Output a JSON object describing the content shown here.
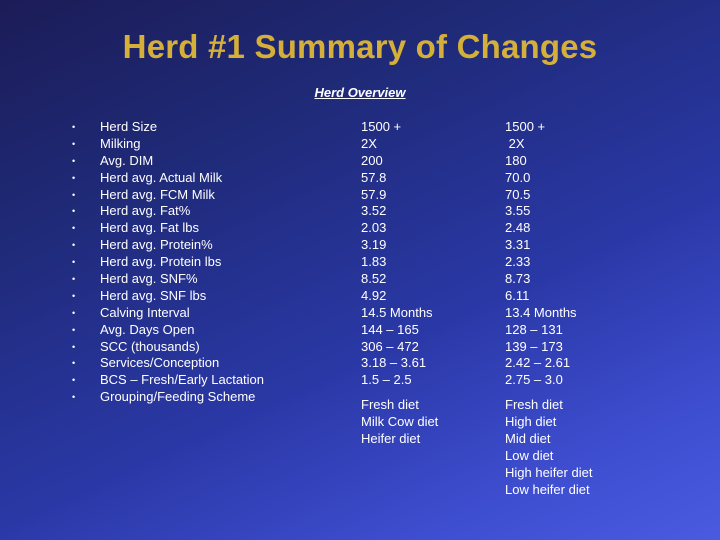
{
  "title": "Herd #1 Summary of Changes",
  "subheading": "Herd Overview",
  "bullet_char": "•",
  "rows": [
    {
      "label": "Herd Size",
      "before": "1500 +",
      "after": "1500 +"
    },
    {
      "label": "Milking",
      "before": "2X",
      "after": " 2X"
    },
    {
      "label": "Avg. DIM",
      "before": "200",
      "after": "180"
    },
    {
      "label": "Herd avg. Actual Milk",
      "before": "57.8",
      "after": "70.0"
    },
    {
      "label": "Herd avg. FCM Milk",
      "before": "57.9",
      "after": "70.5"
    },
    {
      "label": "Herd avg. Fat%",
      "before": "3.52",
      "after": "3.55"
    },
    {
      "label": "Herd avg. Fat lbs",
      "before": "2.03",
      "after": "2.48"
    },
    {
      "label": "Herd avg. Protein%",
      "before": "3.19",
      "after": "3.31"
    },
    {
      "label": "Herd avg. Protein lbs",
      "before": "1.83",
      "after": "2.33"
    },
    {
      "label": "Herd avg. SNF%",
      "before": "8.52",
      "after": "8.73"
    },
    {
      "label": "Herd avg. SNF lbs",
      "before": "4.92",
      "after": "6.11"
    },
    {
      "label": "Calving Interval",
      "before": "14.5 Months",
      "after": "13.4 Months"
    },
    {
      "label": "Avg. Days Open",
      "before": "144 – 165",
      "after": "128 – 131"
    },
    {
      "label": "SCC (thousands)",
      "before": "306 – 472",
      "after": "139 – 173"
    },
    {
      "label": "Services/Conception",
      "before": "3.18 – 3.61",
      "after": "2.42 – 2.61"
    },
    {
      "label": "BCS – Fresh/Early Lactation",
      "before": "1.5 – 2.5",
      "after": "2.75 – 3.0"
    },
    {
      "label": "Grouping/Feeding Scheme",
      "before": "",
      "after": ""
    }
  ],
  "grouping_before": [
    "Fresh diet",
    "Milk Cow diet",
    "Heifer diet"
  ],
  "grouping_after": [
    "Fresh diet",
    "High diet",
    "Mid diet",
    "Low diet",
    "High heifer diet",
    "Low heifer diet"
  ],
  "colors": {
    "title": "#d4b03a",
    "text": "#ffffff",
    "background_dark": "#1c1c57",
    "background_light": "#4b5be0"
  }
}
